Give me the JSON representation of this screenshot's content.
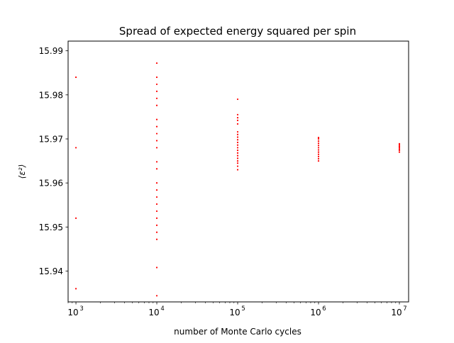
{
  "chart_data": {
    "type": "scatter",
    "title": "Spread of expected energy squared per spin",
    "xlabel": "number of Monte Carlo cycles",
    "ylabel": "⟨ε²⟩",
    "x_scale": "log",
    "xlim": [
      800,
      13000000
    ],
    "ylim": [
      15.933,
      15.9922
    ],
    "x_ticks": [
      {
        "value": 1000,
        "base": "10",
        "exp": "3"
      },
      {
        "value": 10000,
        "base": "10",
        "exp": "4"
      },
      {
        "value": 100000,
        "base": "10",
        "exp": "5"
      },
      {
        "value": 1000000,
        "base": "10",
        "exp": "6"
      },
      {
        "value": 10000000,
        "base": "10",
        "exp": "7"
      }
    ],
    "y_ticks": [
      15.94,
      15.95,
      15.96,
      15.97,
      15.98,
      15.99
    ],
    "y_tick_labels": [
      "15.94",
      "15.95",
      "15.96",
      "15.97",
      "15.98",
      "15.99"
    ],
    "grid": false,
    "marker_color": "#ff0000",
    "series": [
      {
        "x": 1000,
        "y": [
          15.936,
          15.952,
          15.968,
          15.984
        ]
      },
      {
        "x": 10000,
        "y": [
          15.9344,
          15.9408,
          15.9472,
          15.9488,
          15.9504,
          15.952,
          15.9536,
          15.9552,
          15.9568,
          15.9584,
          15.96,
          15.9632,
          15.9648,
          15.968,
          15.9696,
          15.9712,
          15.9728,
          15.9744,
          15.9776,
          15.9792,
          15.9808,
          15.9824,
          15.984,
          15.9872
        ]
      },
      {
        "x": 100000,
        "y": [
          15.963,
          15.9638,
          15.9645,
          15.965,
          15.9656,
          15.9662,
          15.9668,
          15.9674,
          15.968,
          15.9686,
          15.9692,
          15.9698,
          15.9704,
          15.971,
          15.9716,
          15.9734,
          15.9742,
          15.9748,
          15.9755,
          15.979
        ]
      },
      {
        "x": 1000000,
        "y": [
          15.965,
          15.9655,
          15.966,
          15.9665,
          15.967,
          15.9675,
          15.968,
          15.9685,
          15.969,
          15.9695,
          15.97,
          15.9703
        ]
      },
      {
        "x": 10000000,
        "y": [
          15.967,
          15.9674,
          15.9677,
          15.968,
          15.9683,
          15.9686,
          15.9689
        ]
      }
    ]
  }
}
